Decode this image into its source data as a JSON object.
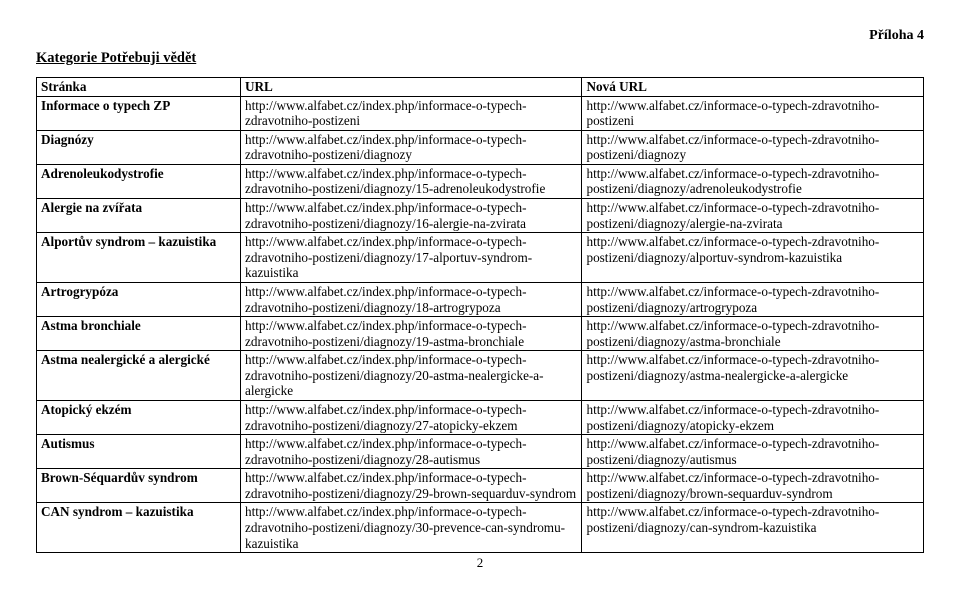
{
  "attachment_label": "Příloha 4",
  "category_title": "Kategorie Potřebuji vědět",
  "columns": {
    "page": "Stránka",
    "url": "URL",
    "new_url": "Nová URL"
  },
  "rows": [
    {
      "page": "Informace o typech ZP",
      "url": "http://www.alfabet.cz/index.php/informace-o-typech-zdravotniho-postizeni",
      "new_url": "http://www.alfabet.cz/informace-o-typech-zdravotniho-postizeni"
    },
    {
      "page": "Diagnózy",
      "url": "http://www.alfabet.cz/index.php/informace-o-typech-zdravotniho-postizeni/diagnozy",
      "new_url": "http://www.alfabet.cz/informace-o-typech-zdravotniho-postizeni/diagnozy"
    },
    {
      "page": "Adrenoleukodystrofie",
      "url": "http://www.alfabet.cz/index.php/informace-o-typech-zdravotniho-postizeni/diagnozy/15-adrenoleukodystrofie",
      "new_url": "http://www.alfabet.cz/informace-o-typech-zdravotniho-postizeni/diagnozy/adrenoleukodystrofie"
    },
    {
      "page": "Alergie na zvířata",
      "url": "http://www.alfabet.cz/index.php/informace-o-typech-zdravotniho-postizeni/diagnozy/16-alergie-na-zvirata",
      "new_url": "http://www.alfabet.cz/informace-o-typech-zdravotniho-postizeni/diagnozy/alergie-na-zvirata"
    },
    {
      "page": "Alportův syndrom – kazuistika",
      "url": "http://www.alfabet.cz/index.php/informace-o-typech-zdravotniho-postizeni/diagnozy/17-alportuv-syndrom-kazuistika",
      "new_url": "http://www.alfabet.cz/informace-o-typech-zdravotniho-postizeni/diagnozy/alportuv-syndrom-kazuistika"
    },
    {
      "page": "Artrogrypóza",
      "url": "http://www.alfabet.cz/index.php/informace-o-typech-zdravotniho-postizeni/diagnozy/18-artrogrypoza",
      "new_url": "http://www.alfabet.cz/informace-o-typech-zdravotniho-postizeni/diagnozy/artrogrypoza"
    },
    {
      "page": "Astma bronchiale",
      "url": "http://www.alfabet.cz/index.php/informace-o-typech-zdravotniho-postizeni/diagnozy/19-astma-bronchiale",
      "new_url": "http://www.alfabet.cz/informace-o-typech-zdravotniho-postizeni/diagnozy/astma-bronchiale"
    },
    {
      "page": "Astma nealergické a alergické",
      "url": "http://www.alfabet.cz/index.php/informace-o-typech-zdravotniho-postizeni/diagnozy/20-astma-nealergicke-a-alergicke",
      "new_url": "http://www.alfabet.cz/informace-o-typech-zdravotniho-postizeni/diagnozy/astma-nealergicke-a-alergicke"
    },
    {
      "page": "Atopický ekzém",
      "url": "http://www.alfabet.cz/index.php/informace-o-typech-zdravotniho-postizeni/diagnozy/27-atopicky-ekzem",
      "new_url": "http://www.alfabet.cz/informace-o-typech-zdravotniho-postizeni/diagnozy/atopicky-ekzem"
    },
    {
      "page": "Autismus",
      "url": "http://www.alfabet.cz/index.php/informace-o-typech-zdravotniho-postizeni/diagnozy/28-autismus",
      "new_url": "http://www.alfabet.cz/informace-o-typech-zdravotniho-postizeni/diagnozy/autismus"
    },
    {
      "page": "Brown-Séquardův syndrom",
      "url": "http://www.alfabet.cz/index.php/informace-o-typech-zdravotniho-postizeni/diagnozy/29-brown-sequarduv-syndrom",
      "new_url": "http://www.alfabet.cz/informace-o-typech-zdravotniho-postizeni/diagnozy/brown-sequarduv-syndrom"
    },
    {
      "page": "CAN syndrom – kazuistika",
      "url": "http://www.alfabet.cz/index.php/informace-o-typech-zdravotniho-postizeni/diagnozy/30-prevence-can-syndromu-kazuistika",
      "new_url": "http://www.alfabet.cz/informace-o-typech-zdravotniho-postizeni/diagnozy/can-syndrom-kazuistika"
    }
  ],
  "page_number": "2"
}
